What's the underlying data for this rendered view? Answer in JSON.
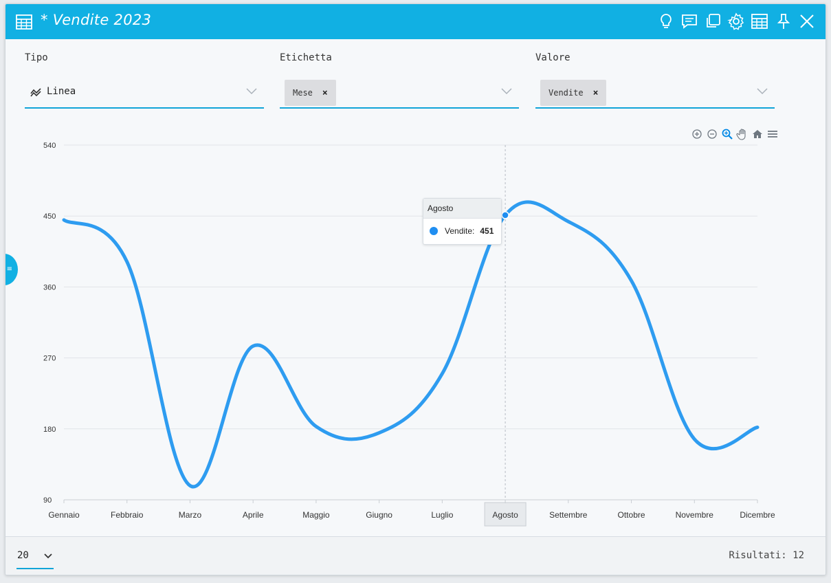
{
  "window": {
    "title": "* Vendite 2023",
    "title_icon": "table-icon",
    "toolbar_icons": [
      "lightbulb-icon",
      "comment-icon",
      "copy-icon",
      "gear-icon",
      "table-icon",
      "pin-icon",
      "close-icon"
    ]
  },
  "fields": {
    "tipo": {
      "label": "Tipo",
      "value": "Linea",
      "icon": "line-chart-icon"
    },
    "etichetta": {
      "label": "Etichetta",
      "chip": "Mese",
      "chip_remove": "×"
    },
    "valore": {
      "label": "Valore",
      "chip": "Vendite",
      "chip_remove": "×"
    }
  },
  "chart_toolbar": [
    "zoom-in-icon",
    "zoom-out-icon",
    "zoom-select-icon",
    "pan-icon",
    "home-icon",
    "menu-icon"
  ],
  "tooltip": {
    "title": "Agosto",
    "series": "Vendite:",
    "value": "451"
  },
  "footer": {
    "page_size": "20",
    "results": "Risultati: 12"
  },
  "colors": {
    "accent": "#11b0e3",
    "line": "#2e9cf0",
    "underline": "#11a4d8"
  },
  "chart_data": {
    "type": "line",
    "categories": [
      "Gennaio",
      "Febbraio",
      "Marzo",
      "Aprile",
      "Maggio",
      "Giugno",
      "Luglio",
      "Agosto",
      "Settembre",
      "Ottobre",
      "Novembre",
      "Dicembre"
    ],
    "series": [
      {
        "name": "Vendite",
        "values": [
          445,
          392,
          108,
          285,
          183,
          175,
          250,
          451,
          443,
          368,
          167,
          182
        ]
      }
    ],
    "ylim": [
      90,
      540
    ],
    "yticks": [
      90,
      180,
      270,
      360,
      450,
      540
    ],
    "ytick_labels": [
      "90",
      "180",
      "270",
      "360",
      "450",
      "540"
    ],
    "highlighted_category": "Agosto",
    "grid": true,
    "smooth": true
  }
}
